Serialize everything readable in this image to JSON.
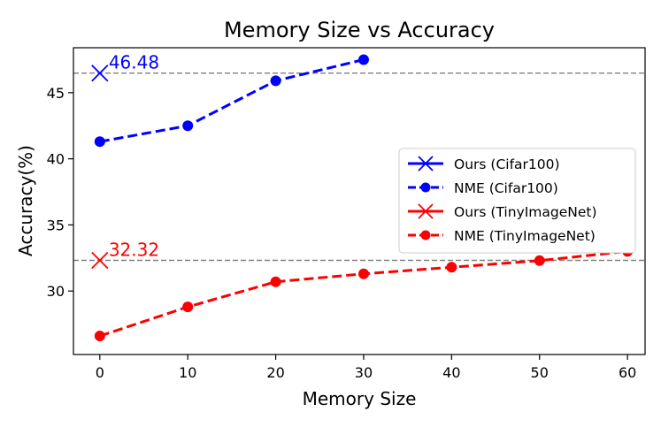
{
  "chart_data": {
    "type": "line",
    "title": "Memory Size vs Accuracy",
    "xlabel": "Memory Size",
    "ylabel": "Accuracy(%)",
    "xlim": [
      -3,
      62
    ],
    "ylim": [
      25.2,
      48.4
    ],
    "xticks": [
      0,
      10,
      20,
      30,
      40,
      50,
      60
    ],
    "yticks": [
      30,
      35,
      40,
      45
    ],
    "grid": false,
    "legend_position": "center-right",
    "reference_lines": [
      {
        "y": 46.48,
        "style": "dashed",
        "color": "#808080"
      },
      {
        "y": 32.32,
        "style": "dashed",
        "color": "#808080"
      }
    ],
    "annotations": [
      {
        "text": "46.48",
        "x": 0,
        "y": 46.48,
        "color": "#0000ff"
      },
      {
        "text": "32.32",
        "x": 0,
        "y": 32.32,
        "color": "#ff0000"
      }
    ],
    "series": [
      {
        "name": "Ours (Cifar100)",
        "color": "#0000ff",
        "marker": "x",
        "line": "solid",
        "points": [
          {
            "x": 0,
            "y": 46.48
          }
        ]
      },
      {
        "name": "NME (Cifar100)",
        "color": "#0000ff",
        "marker": "circle",
        "line": "dashed",
        "points": [
          {
            "x": 0,
            "y": 41.3
          },
          {
            "x": 10,
            "y": 42.5
          },
          {
            "x": 20,
            "y": 45.9
          },
          {
            "x": 30,
            "y": 47.5
          }
        ]
      },
      {
        "name": "Ours (TinyImageNet)",
        "color": "#ff0000",
        "marker": "x",
        "line": "solid",
        "points": [
          {
            "x": 0,
            "y": 32.32
          }
        ]
      },
      {
        "name": "NME (TinyImageNet)",
        "color": "#ff0000",
        "marker": "circle",
        "line": "dashed",
        "points": [
          {
            "x": 0,
            "y": 26.6
          },
          {
            "x": 10,
            "y": 28.8
          },
          {
            "x": 20,
            "y": 30.7
          },
          {
            "x": 30,
            "y": 31.3
          },
          {
            "x": 40,
            "y": 31.8
          },
          {
            "x": 50,
            "y": 32.3
          },
          {
            "x": 60,
            "y": 33.0
          }
        ]
      }
    ]
  }
}
